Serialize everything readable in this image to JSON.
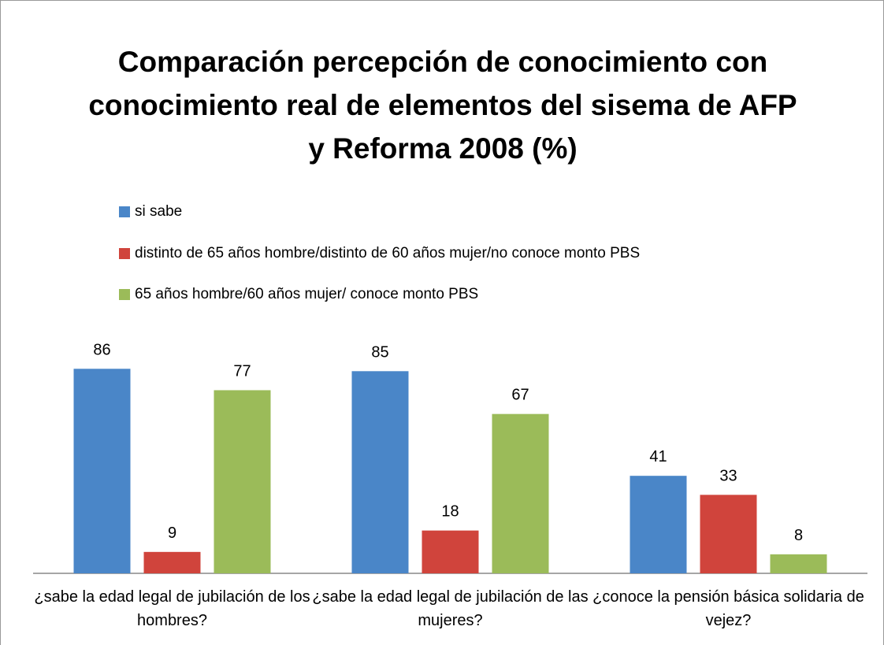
{
  "chart_data": {
    "type": "bar",
    "title": "Comparación percepción de  conocimiento con conocimiento real de elementos del sisema de AFP y Reforma 2008 (%)",
    "categories": [
      "¿sabe la edad legal de jubilación de los hombres?",
      "¿sabe la edad legal de jubilación de las mujeres?",
      "¿conoce la pensión básica solidaria de vejez?"
    ],
    "series": [
      {
        "name": "si sabe",
        "color": "#4a86c8",
        "values": [
          86,
          85,
          41
        ]
      },
      {
        "name": "distinto de 65 años hombre/distinto de 60 años mujer/no conoce monto PBS",
        "color": "#d0443c",
        "values": [
          9,
          18,
          33
        ]
      },
      {
        "name": "65 años hombre/60 años mujer/ conoce monto PBS",
        "color": "#9bbb59",
        "values": [
          77,
          67,
          8
        ]
      }
    ],
    "legend": "top"
  }
}
